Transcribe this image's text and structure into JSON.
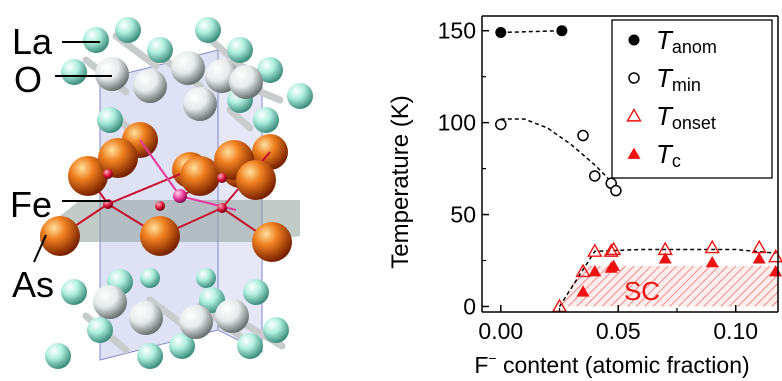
{
  "structure": {
    "labels": [
      "La",
      "O",
      "Fe",
      "As"
    ],
    "colors": {
      "la": "#aeeedd",
      "o": "#e6eaea",
      "fe": "#e0500a",
      "fe_site": "#d81038",
      "as_center": "#e8399a",
      "bond": "#c8102e",
      "cell": "#b8bce8",
      "plane": "#8fa09a"
    }
  },
  "chart_data": {
    "type": "scatter",
    "xlabel_prefix": "F",
    "xlabel_sup": "−",
    "xlabel_rest": " content (atomic fraction)",
    "ylabel": "Temperature (K)",
    "xlim": [
      -0.008,
      0.118
    ],
    "ylim": [
      -3,
      158
    ],
    "xticks": [
      0.0,
      0.05,
      0.1
    ],
    "xtick_labels": [
      "0.00",
      "0.05",
      "0.10"
    ],
    "yticks": [
      0,
      50,
      100,
      150
    ],
    "ytick_labels": [
      "0",
      "50",
      "100",
      "150"
    ],
    "region_label": "SC",
    "region_x": [
      0.025,
      0.035,
      0.12
    ],
    "region_y": [
      0,
      22,
      22
    ],
    "series": [
      {
        "name": "T",
        "sub": "anom",
        "marker": "circle-filled",
        "color": "#000000",
        "x": [
          0.0,
          0.026
        ],
        "y": [
          149,
          150
        ]
      },
      {
        "name": "T",
        "sub": "min",
        "marker": "circle-open",
        "color": "#000000",
        "x": [
          0.0,
          0.035,
          0.04,
          0.047,
          0.049
        ],
        "y": [
          99,
          93,
          71,
          67,
          63
        ]
      },
      {
        "name": "T",
        "sub": "onset",
        "marker": "triangle-open",
        "color": "#ee1111",
        "x": [
          0.025,
          0.035,
          0.04,
          0.047,
          0.048,
          0.07,
          0.09,
          0.11,
          0.117
        ],
        "y": [
          0,
          19,
          30,
          30,
          31,
          31,
          32,
          32,
          27
        ]
      },
      {
        "name": "T",
        "sub": "c",
        "marker": "triangle-filled",
        "color": "#ee1111",
        "x": [
          0.035,
          0.04,
          0.047,
          0.048,
          0.07,
          0.09,
          0.11,
          0.117
        ],
        "y": [
          8,
          19,
          21,
          22,
          26,
          24,
          26,
          19
        ]
      }
    ],
    "guides": [
      {
        "x": [
          0.0,
          0.026
        ],
        "y": [
          149,
          150
        ]
      },
      {
        "x": [
          0.0,
          0.01,
          0.02,
          0.03,
          0.04,
          0.05
        ],
        "y": [
          102,
          102,
          97,
          88,
          77,
          64
        ]
      },
      {
        "x": [
          0.025,
          0.04,
          0.06,
          0.08,
          0.1,
          0.117
        ],
        "y": [
          0,
          30,
          31,
          31,
          31,
          29
        ]
      }
    ]
  }
}
